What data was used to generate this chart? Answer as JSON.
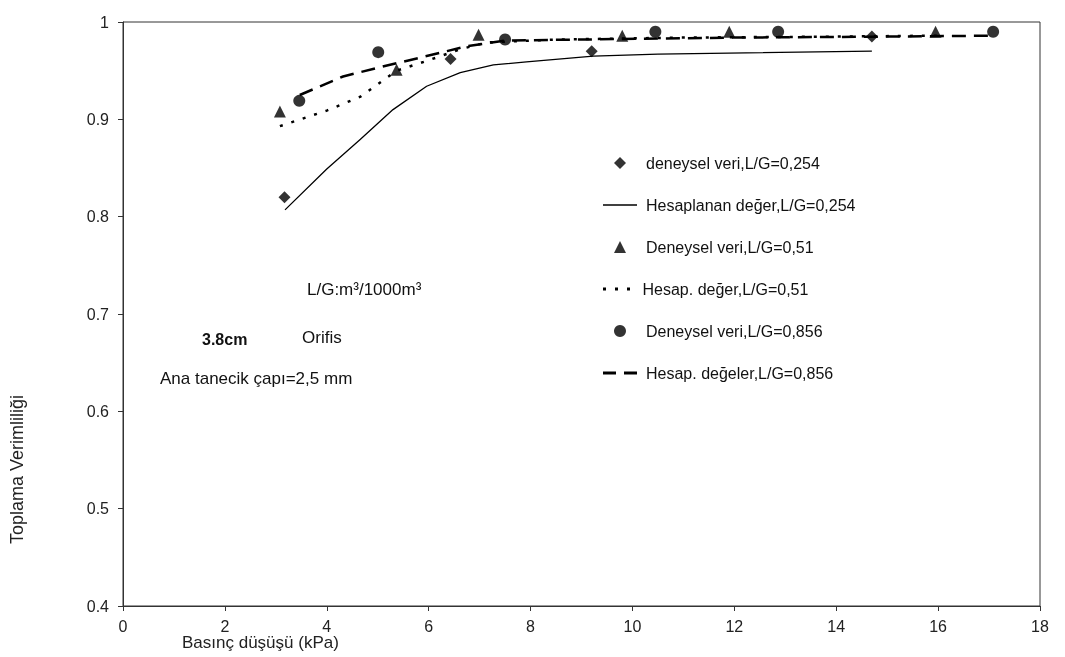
{
  "chart_data": {
    "type": "scatter",
    "xlabel": "Basınç düşüşü (kPa)",
    "ylabel": "Toplama Verimliliği",
    "xlim": [
      0,
      18
    ],
    "xticks": [
      0,
      2,
      4,
      6,
      8,
      10,
      12,
      14,
      16,
      18
    ],
    "ylim": [
      0.4,
      1
    ],
    "yticks": [
      0.4,
      0.5,
      0.6,
      0.7,
      0.8,
      0.9,
      1
    ],
    "grid": false,
    "legend": "right",
    "annotations": [
      "L/G:m³/1000m³",
      "3.8cm",
      "Orifis",
      "Ana tanecik çapı=2,5 mm"
    ],
    "series": [
      {
        "name": "deneysel veri,L/G=0,254",
        "marker": "diamond",
        "color": "#000000",
        "x": [
          3.17,
          6.43,
          9.2,
          14.7
        ],
        "values": [
          0.82,
          0.962,
          0.97,
          0.985
        ]
      },
      {
        "name": "Hesaplanan değer,L/G=0,254",
        "type": "line",
        "marker": "none",
        "line_style": "solid",
        "color": "#000000",
        "x": [
          3.18,
          4.0,
          4.65,
          5.3,
          5.96,
          6.62,
          7.27,
          7.92,
          9.23,
          10.5,
          14.7
        ],
        "values": [
          0.807,
          0.849,
          0.879,
          0.91,
          0.934,
          0.948,
          0.956,
          0.959,
          0.965,
          0.967,
          0.97
        ]
      },
      {
        "name": "Deneysel veri,L/G=0,51",
        "marker": "triangle",
        "color": "#000000",
        "x": [
          3.08,
          5.37,
          6.98,
          9.8,
          11.9,
          15.95
        ],
        "values": [
          0.908,
          0.951,
          0.987,
          0.986,
          0.99,
          0.99
        ]
      },
      {
        "name": "Hesap. değer,L/G=0,51",
        "type": "line",
        "marker": "none",
        "line_style": "dotted",
        "color": "#000000",
        "x": [
          3.08,
          4.0,
          4.65,
          5.37,
          5.96,
          6.62,
          7.14,
          8.5,
          11,
          14,
          16.0
        ],
        "values": [
          0.893,
          0.909,
          0.923,
          0.95,
          0.96,
          0.972,
          0.979,
          0.982,
          0.984,
          0.985,
          0.986
        ]
      },
      {
        "name": "Deneysel veri,L/G=0,856",
        "marker": "circle",
        "color": "#000000",
        "x": [
          3.46,
          5.01,
          7.5,
          10.45,
          12.86,
          17.08
        ],
        "values": [
          0.919,
          0.969,
          0.982,
          0.99,
          0.99,
          0.99
        ]
      },
      {
        "name": "Hesap. değeler,L/G=0,856",
        "type": "line",
        "marker": "none",
        "line_style": "dashed",
        "color": "#000000",
        "x": [
          3.47,
          4.32,
          5.0,
          5.96,
          6.74,
          7.5,
          9,
          12,
          15,
          17.08
        ],
        "values": [
          0.925,
          0.944,
          0.953,
          0.965,
          0.975,
          0.981,
          0.982,
          0.984,
          0.985,
          0.986
        ]
      }
    ]
  }
}
